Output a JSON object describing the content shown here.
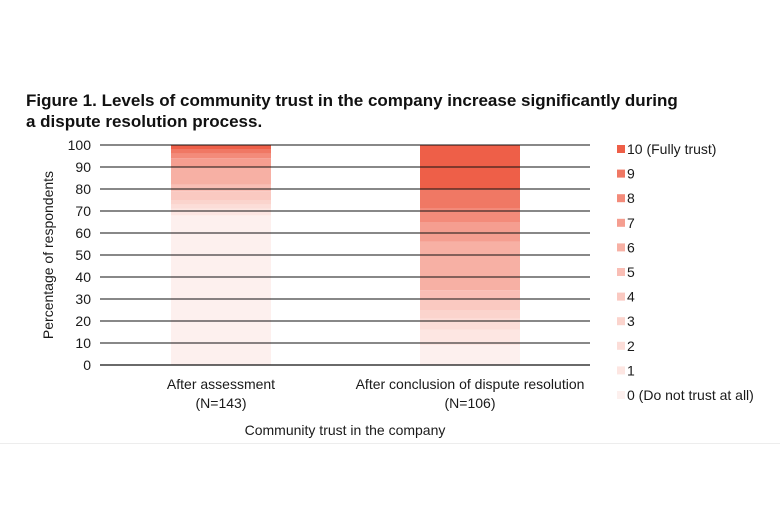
{
  "chart_data": {
    "type": "bar",
    "stacked": true,
    "title": "Figure 1. Levels of community trust in the company increase significantly during a dispute resolution process.",
    "xlabel": "Community trust in the company",
    "ylabel": "Percentage of respondents",
    "ylim": [
      0,
      100
    ],
    "yticks": [
      0,
      10,
      20,
      30,
      40,
      50,
      60,
      70,
      80,
      90,
      100
    ],
    "grid": true,
    "legend_position": "right",
    "categories": [
      [
        "After assessment",
        "(N=143)"
      ],
      [
        "After conclusion of dispute resolution",
        "(N=106)"
      ]
    ],
    "series": [
      {
        "name": "0 (Do not trust at all)",
        "color": "#fdf0ee",
        "values": [
          68,
          9
        ]
      },
      {
        "name": "1",
        "color": "#fde6e2",
        "values": [
          3,
          7
        ]
      },
      {
        "name": "2",
        "color": "#fcddd8",
        "values": [
          2,
          5
        ]
      },
      {
        "name": "3",
        "color": "#fbd4cd",
        "values": [
          2,
          4
        ]
      },
      {
        "name": "4",
        "color": "#fac9c1",
        "values": [
          4,
          5
        ]
      },
      {
        "name": "5",
        "color": "#f9beb5",
        "values": [
          3,
          4
        ]
      },
      {
        "name": "6",
        "color": "#f7b0a4",
        "values": [
          8,
          22
        ]
      },
      {
        "name": "7",
        "color": "#f59e90",
        "values": [
          4,
          9
        ]
      },
      {
        "name": "8",
        "color": "#f38b7a",
        "values": [
          2,
          6
        ]
      },
      {
        "name": "9",
        "color": "#f07864",
        "values": [
          2,
          9
        ]
      },
      {
        "name": "10 (Fully trust)",
        "color": "#ee5f48",
        "values": [
          2,
          20
        ]
      }
    ]
  }
}
